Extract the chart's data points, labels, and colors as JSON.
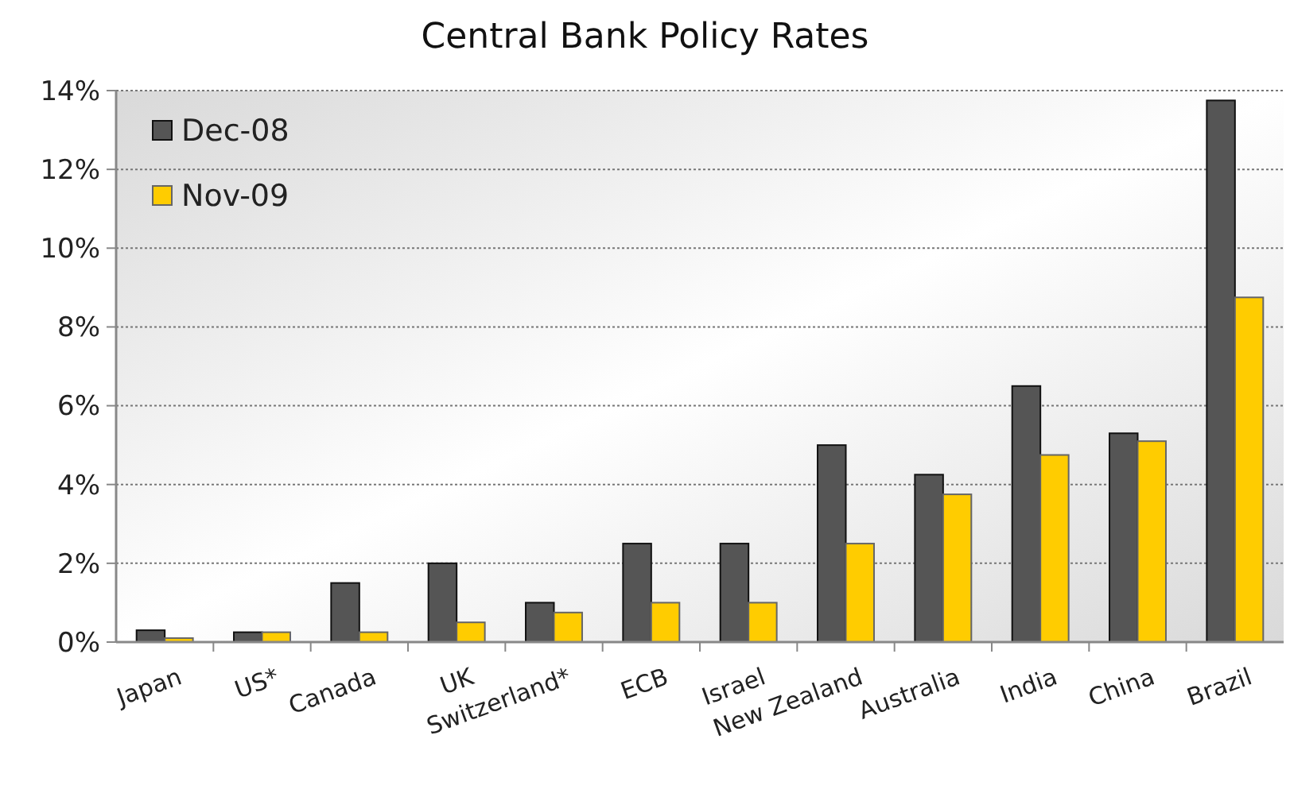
{
  "chart_data": {
    "type": "bar",
    "title": "Central Bank Policy Rates",
    "categories": [
      "Japan",
      "US*",
      "Canada",
      "UK",
      "Switzerland*",
      "ECB",
      "Israel",
      "New Zealand",
      "Australia",
      "India",
      "China",
      "Brazil"
    ],
    "series": [
      {
        "name": "Dec-08",
        "color": "#555555",
        "values": [
          0.3,
          0.25,
          1.5,
          2.0,
          1.0,
          2.5,
          2.5,
          5.0,
          4.25,
          6.5,
          5.3,
          13.75
        ]
      },
      {
        "name": "Nov-09",
        "color": "#ffcc00",
        "values": [
          0.1,
          0.25,
          0.25,
          0.5,
          0.75,
          1.0,
          1.0,
          2.5,
          3.75,
          4.75,
          5.1,
          8.75
        ]
      }
    ],
    "ylim": [
      0,
      14
    ],
    "yticks": [
      {
        "value": 0,
        "label": "0%"
      },
      {
        "value": 2,
        "label": "2%"
      },
      {
        "value": 4,
        "label": "4%"
      },
      {
        "value": 6,
        "label": "6%"
      },
      {
        "value": 8,
        "label": "8%"
      },
      {
        "value": 10,
        "label": "10%"
      },
      {
        "value": 12,
        "label": "12%"
      },
      {
        "value": 14,
        "label": "14%"
      }
    ],
    "grid": "y",
    "legend": "top left"
  }
}
